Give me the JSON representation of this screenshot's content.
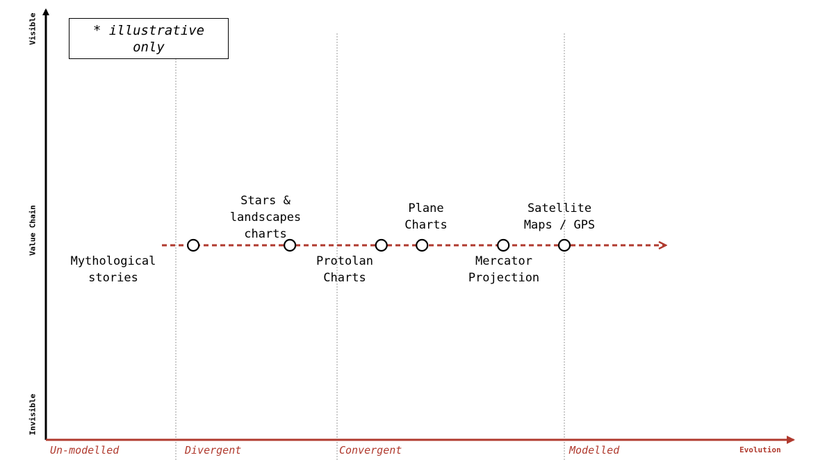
{
  "note": "* illustrative only",
  "axes": {
    "y_title": "Value Chain",
    "y_top": "Visible",
    "y_bottom": "Invisible",
    "x_title": "Evolution"
  },
  "stages": [
    "Un-modelled",
    "Divergent",
    "Convergent",
    "Modelled"
  ],
  "components": [
    {
      "id": "mythological",
      "label": "Mythological\nstories",
      "evolution": 0.29
    },
    {
      "id": "stars",
      "label": "Stars &\nlandscapes\ncharts",
      "evolution": 0.48
    },
    {
      "id": "protolan",
      "label": "Protolan\nCharts",
      "evolution": 0.66
    },
    {
      "id": "plane",
      "label": "Plane\nCharts",
      "evolution": 0.74
    },
    {
      "id": "mercator",
      "label": "Mercator\nProjection",
      "evolution": 0.9
    },
    {
      "id": "satellite",
      "label": "Satellite\nMaps / GPS",
      "evolution": 1.02
    }
  ],
  "colors": {
    "accent": "#b03a2e",
    "axis": "#000000",
    "grid": "#999999"
  }
}
